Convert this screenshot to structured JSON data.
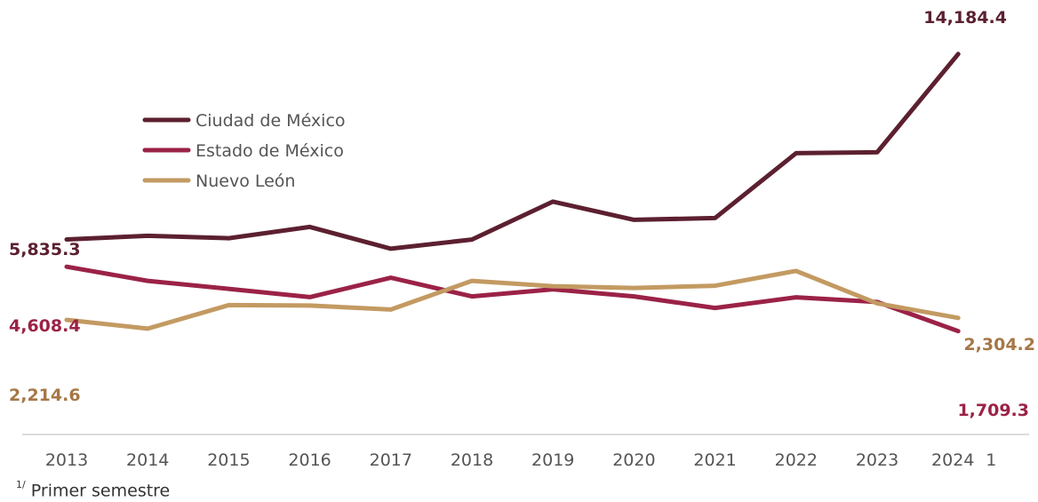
{
  "chart_data": {
    "type": "line",
    "x": [
      "2013",
      "2014",
      "2015",
      "2016",
      "2017",
      "2018",
      "2019",
      "2020",
      "2021",
      "2022",
      "2023",
      "2024"
    ],
    "x_superscript_last": "1",
    "series": [
      {
        "name": "Ciudad de México",
        "color": "#5c2030",
        "values": [
          5835.3,
          6000,
          5890,
          6400,
          5420,
          5830,
          7540,
          6720,
          6800,
          9720,
          9760,
          14184.4
        ]
      },
      {
        "name": "Estado de México",
        "color": "#9b2247",
        "values": [
          4608.4,
          3970,
          3610,
          3240,
          4110,
          3270,
          3590,
          3270,
          2750,
          3230,
          3020,
          1709.3
        ]
      },
      {
        "name": "Nuevo León",
        "color": "#c39a62",
        "values": [
          2214.6,
          1820,
          2880,
          2860,
          2680,
          3970,
          3730,
          3650,
          3750,
          4420,
          2960,
          2304.2
        ]
      }
    ],
    "data_labels": [
      {
        "series": 0,
        "point": 0,
        "text": "5,835.3",
        "color": "#5c2030"
      },
      {
        "series": 0,
        "point": 11,
        "text": "14,184.4",
        "color": "#5c2030"
      },
      {
        "series": 1,
        "point": 0,
        "text": "4,608.4",
        "color": "#9b2247"
      },
      {
        "series": 1,
        "point": 11,
        "text": "1,709.3",
        "color": "#9b2247"
      },
      {
        "series": 2,
        "point": 0,
        "text": "2,214.6",
        "color": "#a67747"
      },
      {
        "series": 2,
        "point": 11,
        "text": "2,304.2",
        "color": "#a67747"
      }
    ],
    "legend_position": "top-left",
    "grid": false,
    "axis_color": "#d0d0d0"
  },
  "footnote": {
    "marker": "1/",
    "text": "Primer semestre"
  }
}
